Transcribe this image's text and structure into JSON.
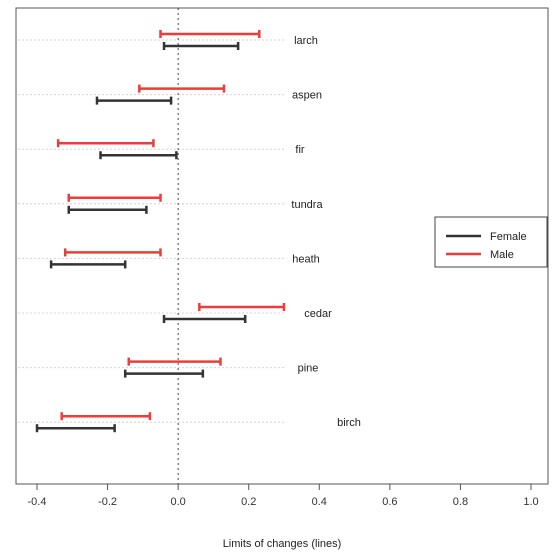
{
  "chart_data": {
    "type": "errorbar",
    "xlabel": "Limits of changes (lines)",
    "xlim": [
      -0.45,
      1.02
    ],
    "xticks": [
      -0.4,
      -0.2,
      0.0,
      0.2,
      0.4,
      0.6,
      0.8,
      1.0
    ],
    "xtick_labels": [
      "-0.4",
      "-0.2",
      "0.0",
      "0.2",
      "0.4",
      "0.6",
      "0.8",
      "1.0"
    ],
    "reference_line_x": 0.0,
    "grid": true,
    "legend_position": "right",
    "categories": [
      "larch",
      "aspen",
      "fir",
      "tundra",
      "heath",
      "cedar",
      "pine",
      "birch"
    ],
    "series": [
      {
        "name": "Male",
        "color": "#ee3b3b",
        "intervals": [
          [
            -0.05,
            0.23
          ],
          [
            -0.11,
            0.13
          ],
          [
            -0.34,
            -0.07
          ],
          [
            -0.31,
            -0.05
          ],
          [
            -0.32,
            -0.05
          ],
          [
            0.06,
            0.3
          ],
          [
            -0.14,
            0.12
          ],
          [
            -0.33,
            -0.08
          ]
        ]
      },
      {
        "name": "Female",
        "color": "#333333",
        "intervals": [
          [
            -0.04,
            0.17
          ],
          [
            -0.23,
            -0.02
          ],
          [
            -0.22,
            -0.005
          ],
          [
            -0.31,
            -0.09
          ],
          [
            -0.36,
            -0.15
          ],
          [
            -0.04,
            0.19
          ],
          [
            -0.15,
            0.07
          ],
          [
            -0.4,
            -0.18
          ]
        ]
      }
    ]
  }
}
